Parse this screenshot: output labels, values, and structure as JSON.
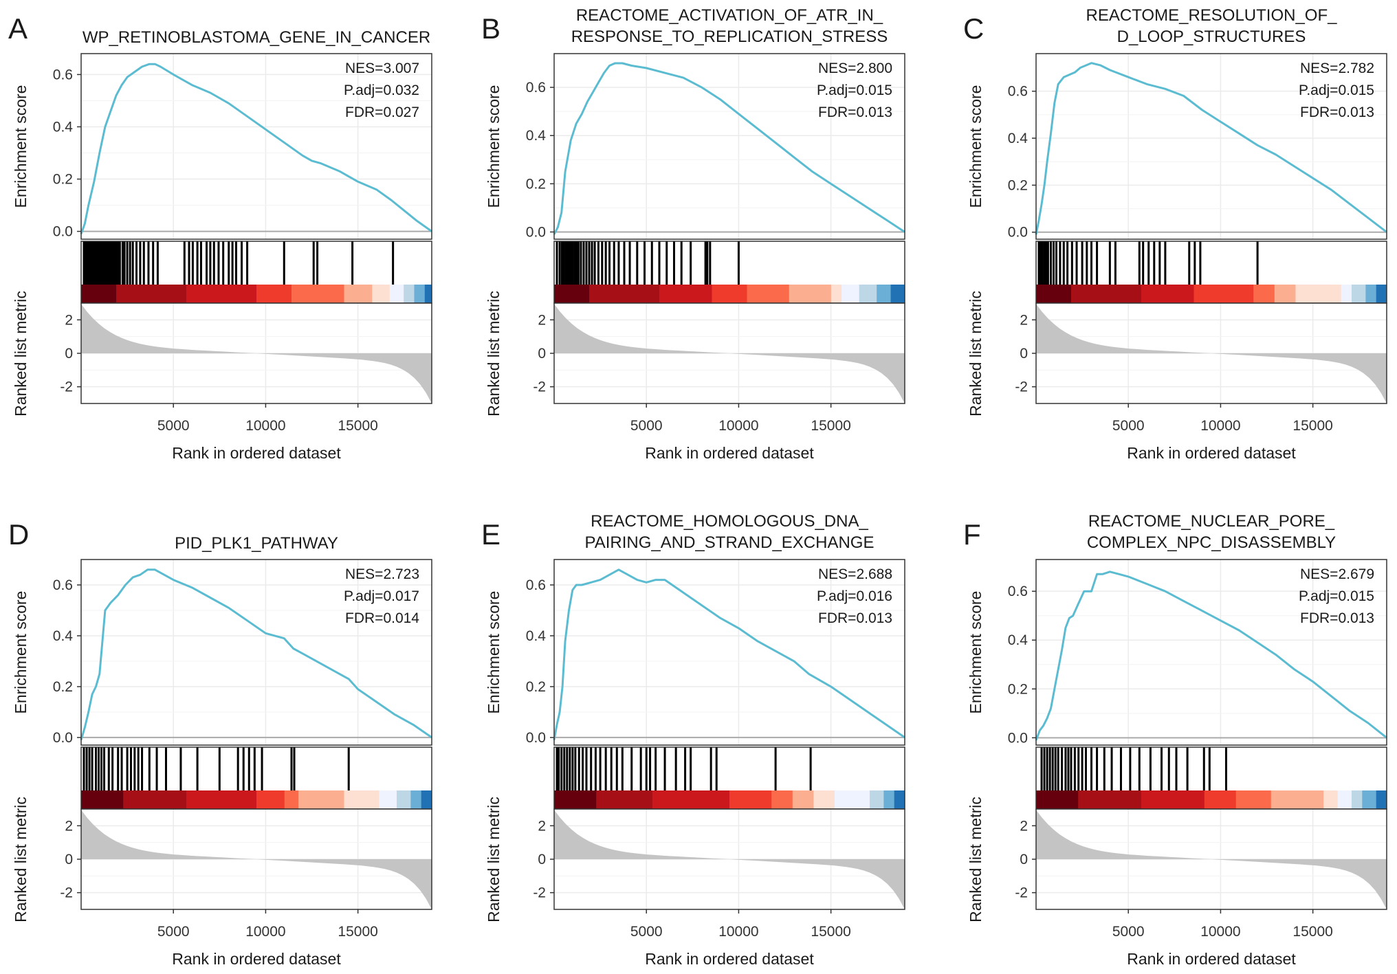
{
  "figure": {
    "common": {
      "ylabel_top": "Enrichment score",
      "ylabel_bottom": "Ranked list metric",
      "xlabel": "Rank in ordered dataset"
    }
  },
  "colors": {
    "curve": "#5bbcd1",
    "hits": "#000000",
    "grid": "#ebebeb",
    "ranked_fill": "#c4c4c4",
    "gradient": [
      "#67000d",
      "#a50f15",
      "#cb181d",
      "#ef3b2c",
      "#fb6a4a",
      "#fcae91",
      "#fee0d2",
      "#eff3ff",
      "#bdd7e7",
      "#6baed6",
      "#2171b5"
    ]
  },
  "chart_data": [
    {
      "type": "line",
      "panel": "A",
      "title_lines": [
        "WP_RETINOBLASTOMA_GENE_IN_CANCER"
      ],
      "stats": [
        "NES=3.007",
        "P.adj=0.032",
        "FDR=0.027"
      ],
      "xlabel": "Rank in ordered dataset",
      "ylabel": "Enrichment score",
      "ylabel2": "Ranked list metric",
      "xlim": [
        0,
        19000
      ],
      "ylim": [
        -0.03,
        0.68
      ],
      "yticks": [
        0.0,
        0.2,
        0.4,
        0.6
      ],
      "yticks_labels": [
        "0.0",
        "0.2",
        "0.4",
        "0.6"
      ],
      "xticks": [
        5000,
        10000,
        15000
      ],
      "xticks_labels": [
        "5000",
        "10000",
        "15000"
      ],
      "metric_ylim": [
        -3,
        3
      ],
      "metric_yticks": [
        2,
        0,
        -2
      ],
      "metric_yticks_labels": [
        "2",
        "0",
        "-2"
      ],
      "curve": {
        "x": [
          0,
          200,
          400,
          700,
          1000,
          1300,
          1600,
          1900,
          2200,
          2500,
          2900,
          3300,
          3700,
          4000,
          4300,
          5000,
          6000,
          7000,
          8000,
          9000,
          10000,
          11000,
          12000,
          12500,
          13000,
          14000,
          15000,
          16000,
          16800,
          17500,
          18200,
          19000
        ],
        "y": [
          -0.01,
          0.03,
          0.1,
          0.19,
          0.3,
          0.4,
          0.46,
          0.52,
          0.56,
          0.59,
          0.61,
          0.63,
          0.64,
          0.64,
          0.63,
          0.6,
          0.56,
          0.53,
          0.49,
          0.44,
          0.39,
          0.34,
          0.29,
          0.27,
          0.26,
          0.23,
          0.19,
          0.16,
          0.12,
          0.08,
          0.04,
          0.0
        ]
      },
      "hits": [
        150,
        250,
        350,
        420,
        500,
        560,
        640,
        700,
        780,
        850,
        920,
        990,
        1060,
        1120,
        1200,
        1280,
        1350,
        1420,
        1500,
        1580,
        1650,
        1720,
        1800,
        1900,
        2000,
        2100,
        2250,
        2350,
        2500,
        2650,
        2800,
        3000,
        3200,
        3400,
        3650,
        3900,
        4150,
        5600,
        5850,
        6050,
        6300,
        6500,
        6800,
        7000,
        7200,
        7450,
        7700,
        8000,
        8200,
        8400,
        8700,
        9000,
        11000,
        12600,
        12800,
        14700,
        16900
      ],
      "gradient_stops": [
        0.1,
        0.3,
        0.5,
        0.6,
        0.75,
        0.83,
        0.88,
        0.92,
        0.95,
        0.98
      ]
    },
    {
      "type": "line",
      "panel": "B",
      "title_lines": [
        "REACTOME_ACTIVATION_OF_ATR_IN_",
        "RESPONSE_TO_REPLICATION_STRESS"
      ],
      "stats": [
        "NES=2.800",
        "P.adj=0.015",
        "FDR=0.013"
      ],
      "xlabel": "Rank in ordered dataset",
      "ylabel": "Enrichment score",
      "ylabel2": "Ranked list metric",
      "xlim": [
        0,
        19000
      ],
      "ylim": [
        -0.03,
        0.74
      ],
      "yticks": [
        0.0,
        0.2,
        0.4,
        0.6
      ],
      "yticks_labels": [
        "0.0",
        "0.2",
        "0.4",
        "0.6"
      ],
      "xticks": [
        5000,
        10000,
        15000
      ],
      "xticks_labels": [
        "5000",
        "10000",
        "15000"
      ],
      "metric_ylim": [
        -3,
        3
      ],
      "metric_yticks": [
        2,
        0,
        -2
      ],
      "metric_yticks_labels": [
        "2",
        "0",
        "-2"
      ],
      "curve": {
        "x": [
          0,
          200,
          400,
          600,
          900,
          1200,
          1500,
          1800,
          2100,
          2400,
          2700,
          3000,
          3300,
          3700,
          4200,
          5000,
          6000,
          7000,
          8000,
          9000,
          10000,
          11000,
          12000,
          13000,
          14000,
          15000,
          16000,
          17000,
          18000,
          19000
        ],
        "y": [
          -0.01,
          0.02,
          0.08,
          0.25,
          0.38,
          0.45,
          0.49,
          0.54,
          0.58,
          0.62,
          0.66,
          0.69,
          0.7,
          0.7,
          0.69,
          0.68,
          0.66,
          0.64,
          0.6,
          0.55,
          0.49,
          0.43,
          0.37,
          0.31,
          0.25,
          0.2,
          0.15,
          0.1,
          0.05,
          0.0
        ]
      },
      "hits": [
        150,
        300,
        420,
        520,
        620,
        720,
        820,
        920,
        1020,
        1120,
        1220,
        1320,
        1450,
        1600,
        1750,
        1900,
        2050,
        2200,
        2400,
        2600,
        2800,
        3000,
        3250,
        3500,
        3800,
        4100,
        4500,
        4900,
        5300,
        5700,
        6100,
        6500,
        6900,
        7400,
        8200,
        8300,
        8450,
        10000
      ],
      "gradient_stops": [
        0.1,
        0.3,
        0.45,
        0.55,
        0.67,
        0.79,
        0.82,
        0.87,
        0.92,
        0.96
      ]
    },
    {
      "type": "line",
      "panel": "C",
      "title_lines": [
        "REACTOME_RESOLUTION_OF_",
        "D_LOOP_STRUCTURES"
      ],
      "stats": [
        "NES=2.782",
        "P.adj=0.015",
        "FDR=0.013"
      ],
      "xlabel": "Rank in ordered dataset",
      "ylabel": "Enrichment score",
      "ylabel2": "Ranked list metric",
      "xlim": [
        0,
        19000
      ],
      "ylim": [
        -0.03,
        0.76
      ],
      "yticks": [
        0.0,
        0.2,
        0.4,
        0.6
      ],
      "yticks_labels": [
        "0.0",
        "0.2",
        "0.4",
        "0.6"
      ],
      "xticks": [
        5000,
        10000,
        15000
      ],
      "xticks_labels": [
        "5000",
        "10000",
        "15000"
      ],
      "metric_ylim": [
        -3,
        3
      ],
      "metric_yticks": [
        2,
        0,
        -2
      ],
      "metric_yticks_labels": [
        "2",
        "0",
        "-2"
      ],
      "curve": {
        "x": [
          0,
          150,
          300,
          450,
          600,
          800,
          1000,
          1200,
          1500,
          1800,
          2100,
          2400,
          2700,
          3000,
          3500,
          4000,
          5000,
          6000,
          7000,
          8000,
          9000,
          10000,
          11000,
          12000,
          13000,
          14000,
          15000,
          16000,
          17000,
          18000,
          19000
        ],
        "y": [
          -0.01,
          0.05,
          0.12,
          0.2,
          0.3,
          0.42,
          0.55,
          0.63,
          0.66,
          0.67,
          0.68,
          0.7,
          0.71,
          0.72,
          0.71,
          0.69,
          0.66,
          0.63,
          0.61,
          0.58,
          0.52,
          0.47,
          0.42,
          0.37,
          0.33,
          0.28,
          0.23,
          0.18,
          0.12,
          0.06,
          0.0
        ]
      },
      "hits": [
        150,
        250,
        350,
        450,
        550,
        650,
        800,
        950,
        1100,
        1300,
        1500,
        1700,
        1950,
        2200,
        2500,
        2750,
        3000,
        3300,
        4000,
        4300,
        5600,
        5800,
        6100,
        6400,
        6700,
        7000,
        8300,
        8600,
        8900,
        12000
      ],
      "gradient_stops": [
        0.1,
        0.3,
        0.45,
        0.62,
        0.68,
        0.74,
        0.87,
        0.9,
        0.94,
        0.97
      ]
    },
    {
      "type": "line",
      "panel": "D",
      "title_lines": [
        "PID_PLK1_PATHWAY"
      ],
      "stats": [
        "NES=2.723",
        "P.adj=0.017",
        "FDR=0.014"
      ],
      "xlabel": "Rank in ordered dataset",
      "ylabel": "Enrichment score",
      "ylabel2": "Ranked list metric",
      "xlim": [
        0,
        19000
      ],
      "ylim": [
        -0.03,
        0.7
      ],
      "yticks": [
        0.0,
        0.2,
        0.4,
        0.6
      ],
      "yticks_labels": [
        "0.0",
        "0.2",
        "0.4",
        "0.6"
      ],
      "xticks": [
        5000,
        10000,
        15000
      ],
      "xticks_labels": [
        "5000",
        "10000",
        "15000"
      ],
      "metric_ylim": [
        -3,
        3
      ],
      "metric_yticks": [
        2,
        0,
        -2
      ],
      "metric_yticks_labels": [
        "2",
        "0",
        "-2"
      ],
      "curve": {
        "x": [
          0,
          200,
          400,
          600,
          800,
          1000,
          1300,
          1600,
          2000,
          2400,
          2800,
          3200,
          3600,
          4000,
          4500,
          5000,
          6000,
          7000,
          8000,
          9000,
          10000,
          11000,
          11500,
          12000,
          13000,
          14000,
          14500,
          15000,
          16000,
          17000,
          18000,
          19000
        ],
        "y": [
          -0.01,
          0.04,
          0.1,
          0.17,
          0.2,
          0.25,
          0.5,
          0.53,
          0.56,
          0.6,
          0.63,
          0.64,
          0.66,
          0.66,
          0.64,
          0.62,
          0.59,
          0.55,
          0.51,
          0.46,
          0.41,
          0.39,
          0.35,
          0.33,
          0.29,
          0.25,
          0.23,
          0.19,
          0.14,
          0.09,
          0.05,
          0.0
        ]
      },
      "hits": [
        150,
        300,
        450,
        600,
        800,
        950,
        1100,
        1250,
        1500,
        1700,
        2000,
        2200,
        2500,
        2700,
        2900,
        3100,
        3300,
        3700,
        4100,
        4600,
        5400,
        6300,
        7500,
        8500,
        8800,
        9100,
        9400,
        9800,
        11400,
        11550,
        14500
      ],
      "gradient_stops": [
        0.12,
        0.3,
        0.5,
        0.58,
        0.62,
        0.75,
        0.85,
        0.9,
        0.94,
        0.97
      ]
    },
    {
      "type": "line",
      "panel": "E",
      "title_lines": [
        "REACTOME_HOMOLOGOUS_DNA_",
        "PAIRING_AND_STRAND_EXCHANGE"
      ],
      "stats": [
        "NES=2.688",
        "P.adj=0.016",
        "FDR=0.013"
      ],
      "xlabel": "Rank in ordered dataset",
      "ylabel": "Enrichment score",
      "ylabel2": "Ranked list metric",
      "xlim": [
        0,
        19000
      ],
      "ylim": [
        -0.03,
        0.7
      ],
      "yticks": [
        0.0,
        0.2,
        0.4,
        0.6
      ],
      "yticks_labels": [
        "0.0",
        "0.2",
        "0.4",
        "0.6"
      ],
      "xticks": [
        5000,
        10000,
        15000
      ],
      "xticks_labels": [
        "5000",
        "10000",
        "15000"
      ],
      "metric_ylim": [
        -3,
        3
      ],
      "metric_yticks": [
        2,
        0,
        -2
      ],
      "metric_yticks_labels": [
        "2",
        "0",
        "-2"
      ],
      "curve": {
        "x": [
          0,
          150,
          300,
          450,
          600,
          800,
          1000,
          1200,
          1500,
          2000,
          2500,
          3000,
          3500,
          4000,
          4500,
          5000,
          5500,
          6000,
          7000,
          8000,
          9000,
          10000,
          11000,
          12000,
          13000,
          13800,
          15000,
          16000,
          17000,
          18000,
          19000
        ],
        "y": [
          -0.01,
          0.05,
          0.1,
          0.2,
          0.38,
          0.5,
          0.58,
          0.6,
          0.6,
          0.61,
          0.62,
          0.64,
          0.66,
          0.64,
          0.62,
          0.61,
          0.62,
          0.62,
          0.57,
          0.52,
          0.47,
          0.43,
          0.38,
          0.34,
          0.3,
          0.25,
          0.2,
          0.15,
          0.1,
          0.05,
          0.0
        ]
      },
      "hits": [
        150,
        250,
        400,
        550,
        700,
        850,
        1000,
        1150,
        1350,
        1550,
        1750,
        2000,
        2250,
        2500,
        2800,
        3100,
        3400,
        3700,
        4200,
        4700,
        5000,
        5200,
        5500,
        6000,
        6600,
        7100,
        7400,
        8500,
        8800,
        12000,
        13900
      ],
      "gradient_stops": [
        0.12,
        0.28,
        0.5,
        0.62,
        0.68,
        0.74,
        0.8,
        0.9,
        0.94,
        0.97
      ]
    },
    {
      "type": "line",
      "panel": "F",
      "title_lines": [
        "REACTOME_NUCLEAR_PORE_",
        "COMPLEX_NPC_DISASSEMBLY"
      ],
      "stats": [
        "NES=2.679",
        "P.adj=0.015",
        "FDR=0.013"
      ],
      "xlabel": "Rank in ordered dataset",
      "ylabel": "Enrichment score",
      "ylabel2": "Ranked list metric",
      "xlim": [
        0,
        19000
      ],
      "ylim": [
        -0.03,
        0.73
      ],
      "yticks": [
        0.0,
        0.2,
        0.4,
        0.6
      ],
      "yticks_labels": [
        "0.0",
        "0.2",
        "0.4",
        "0.6"
      ],
      "xticks": [
        5000,
        10000,
        15000
      ],
      "xticks_labels": [
        "5000",
        "10000",
        "15000"
      ],
      "metric_ylim": [
        -3,
        3
      ],
      "metric_yticks": [
        2,
        0,
        -2
      ],
      "metric_yticks_labels": [
        "2",
        "0",
        "-2"
      ],
      "curve": {
        "x": [
          0,
          200,
          400,
          600,
          800,
          1000,
          1200,
          1400,
          1600,
          1800,
          2000,
          2300,
          2600,
          3000,
          3300,
          3600,
          4000,
          4500,
          5000,
          6000,
          7000,
          8000,
          9000,
          10000,
          11000,
          12000,
          13000,
          14000,
          15000,
          16000,
          17000,
          18000,
          19000
        ],
        "y": [
          -0.01,
          0.03,
          0.05,
          0.08,
          0.12,
          0.2,
          0.28,
          0.36,
          0.45,
          0.49,
          0.5,
          0.55,
          0.6,
          0.6,
          0.67,
          0.67,
          0.68,
          0.67,
          0.66,
          0.63,
          0.6,
          0.56,
          0.52,
          0.48,
          0.44,
          0.39,
          0.34,
          0.28,
          0.23,
          0.17,
          0.11,
          0.06,
          0.0
        ]
      },
      "hits": [
        300,
        450,
        600,
        750,
        900,
        1050,
        1200,
        1400,
        1600,
        1750,
        1900,
        2100,
        2300,
        2500,
        2700,
        3000,
        3300,
        3700,
        4100,
        4600,
        5100,
        5600,
        6200,
        6800,
        7200,
        7600,
        8200,
        9100,
        9400,
        10300
      ],
      "gradient_stops": [
        0.12,
        0.3,
        0.48,
        0.57,
        0.67,
        0.82,
        0.86,
        0.9,
        0.93,
        0.97
      ]
    }
  ]
}
